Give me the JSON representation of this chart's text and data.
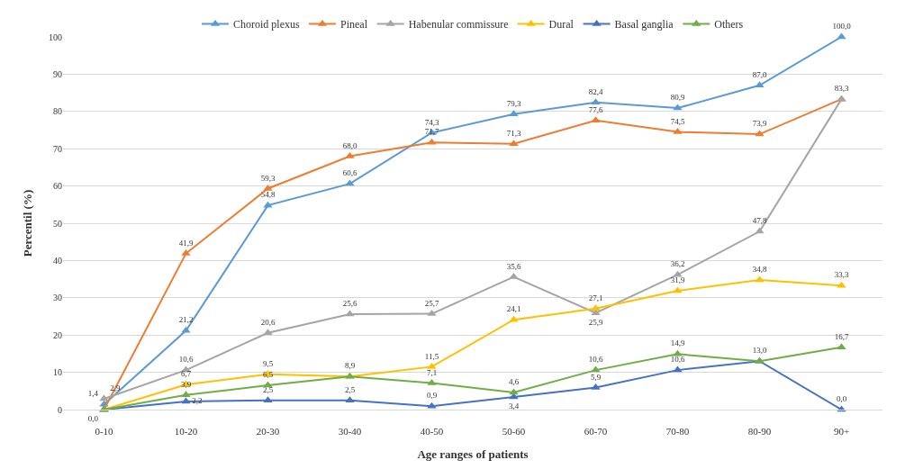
{
  "chart_data": {
    "type": "line",
    "xlabel": "Age ranges of patients",
    "ylabel": "Percentil (%)",
    "categories": [
      "0-10",
      "10-20",
      "20-30",
      "30-40",
      "40-50",
      "50-60",
      "60-70",
      "70-80",
      "80-90",
      "90+"
    ],
    "series": [
      {
        "name": "Choroid plexus",
        "color": "#5b9bd5",
        "values": [
          1.4,
          21.2,
          54.8,
          60.6,
          74.3,
          79.3,
          82.4,
          80.9,
          87.0,
          100.0
        ],
        "value_labels": [
          "1,4",
          "21,2",
          "54,8",
          "60,6",
          "74,3",
          "79,3",
          "82,4",
          "80,9",
          "87,0",
          "100,0"
        ]
      },
      {
        "name": "Pineal",
        "color": "#ed7d31",
        "values": [
          0.0,
          41.9,
          59.3,
          68.0,
          71.7,
          71.3,
          77.6,
          74.5,
          73.9,
          83.3
        ],
        "value_labels": [
          null,
          "41,9",
          "59,3",
          "68,0",
          "71,7",
          "71,3",
          "77,6",
          "74,5",
          "73,9",
          null
        ]
      },
      {
        "name": "Habenular commissure",
        "color": "#a5a5a5",
        "values": [
          2.9,
          10.6,
          20.6,
          25.6,
          25.7,
          35.6,
          25.9,
          36.2,
          47.8,
          83.3
        ],
        "value_labels": [
          "2,9",
          "10,6",
          "20,6",
          "25,6",
          "25,7",
          "35,6",
          "25,9",
          "36,2",
          "47,8",
          "83,3"
        ]
      },
      {
        "name": "Dural",
        "color": "#ffc000",
        "values": [
          0.0,
          6.7,
          9.5,
          8.9,
          11.5,
          24.1,
          27.1,
          31.9,
          34.8,
          33.3
        ],
        "value_labels": [
          "0,0",
          "6,7",
          "9,5",
          null,
          "11,5",
          "24,1",
          "27,1",
          "31,9",
          "34,8",
          "33,3"
        ]
      },
      {
        "name": "Basal ganglia",
        "color": "#4472c4",
        "values": [
          0.0,
          2.2,
          2.5,
          2.5,
          0.9,
          3.4,
          5.9,
          10.6,
          13.0,
          0.0
        ],
        "value_labels": [
          null,
          "2,2",
          "2,5",
          "2,5",
          "0,9",
          "3,4",
          "5,9",
          "10,6",
          null,
          "0,0"
        ]
      },
      {
        "name": "Others",
        "color": "#70ad47",
        "values": [
          0.0,
          3.9,
          6.5,
          8.9,
          7.1,
          4.6,
          10.6,
          14.9,
          13.0,
          16.7
        ],
        "value_labels": [
          null,
          "3,9",
          "6,5",
          "8,9",
          "7,1",
          "4,6",
          "10,6",
          "14,9",
          "13,0",
          "16,7"
        ]
      }
    ],
    "ylim": [
      0,
      100
    ],
    "yticks": [
      0,
      10,
      20,
      30,
      40,
      50,
      60,
      70,
      80,
      90,
      100
    ],
    "grid": "y",
    "legend": "top",
    "marker": "triangle",
    "line_style": "solid"
  }
}
